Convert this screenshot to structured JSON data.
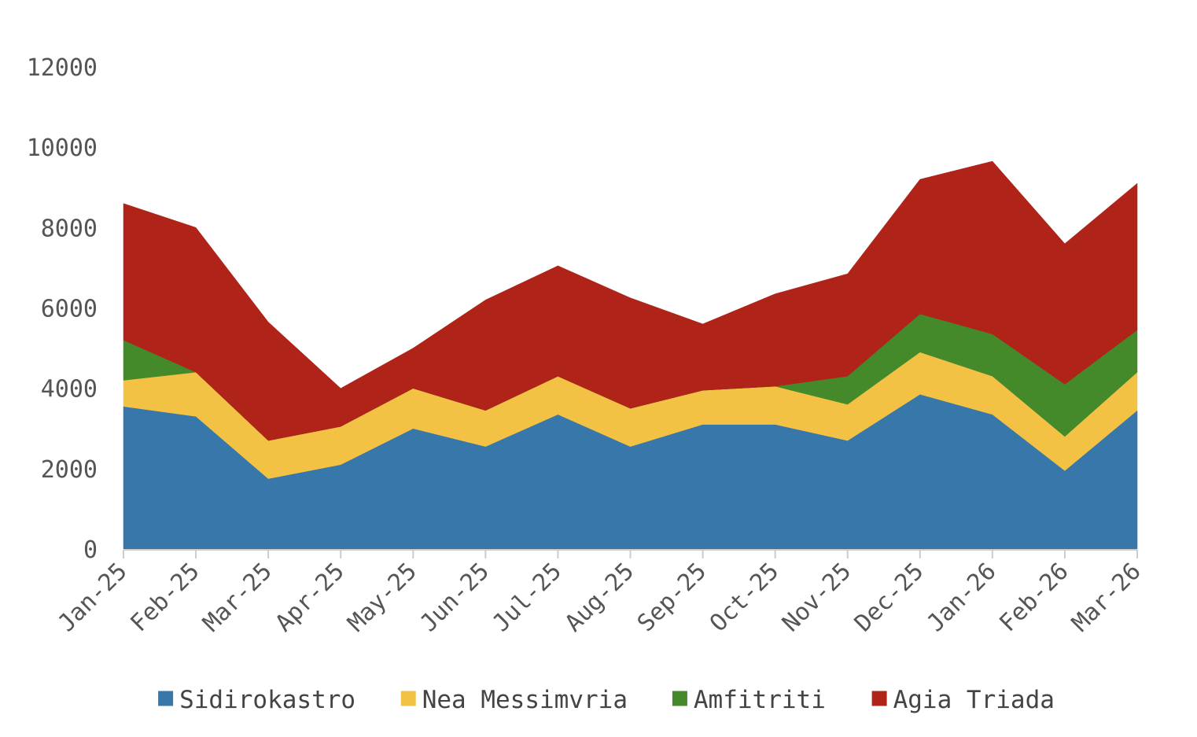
{
  "chart_data": {
    "type": "area",
    "stacked": true,
    "title": "",
    "xlabel": "",
    "ylabel": "",
    "categories": [
      "Jan-25",
      "Feb-25",
      "Mar-25",
      "Apr-25",
      "May-25",
      "Jun-25",
      "Jul-25",
      "Aug-25",
      "Sep-25",
      "Oct-25",
      "Nov-25",
      "Dec-25",
      "Jan-26",
      "Feb-26",
      "Mar-26"
    ],
    "ylim": [
      0,
      12000
    ],
    "yticks": [
      "0",
      "2000",
      "4000",
      "6000",
      "8000",
      "10000",
      "12000"
    ],
    "grid": false,
    "legend_position": "bottom",
    "series": [
      {
        "name": "Sidirokastro",
        "color": "#3777aa",
        "values": [
          3550,
          3300,
          1750,
          2100,
          3000,
          2550,
          3350,
          2550,
          3100,
          3100,
          2700,
          3850,
          3350,
          1950,
          3450
        ]
      },
      {
        "name": "Nea Messimvria",
        "color": "#f3c244",
        "values": [
          650,
          1100,
          950,
          950,
          1000,
          900,
          950,
          950,
          850,
          950,
          900,
          1050,
          950,
          850,
          950
        ]
      },
      {
        "name": "Amfitriti",
        "color": "#458a2a",
        "values": [
          1000,
          0,
          0,
          0,
          0,
          0,
          0,
          0,
          0,
          0,
          700,
          950,
          1050,
          1300,
          1050
        ]
      },
      {
        "name": "Agia Triada",
        "color": "#b02318",
        "values": [
          3400,
          3600,
          2950,
          950,
          1000,
          2750,
          2750,
          2750,
          1650,
          2300,
          2550,
          3350,
          4300,
          3500,
          3650
        ]
      }
    ]
  }
}
